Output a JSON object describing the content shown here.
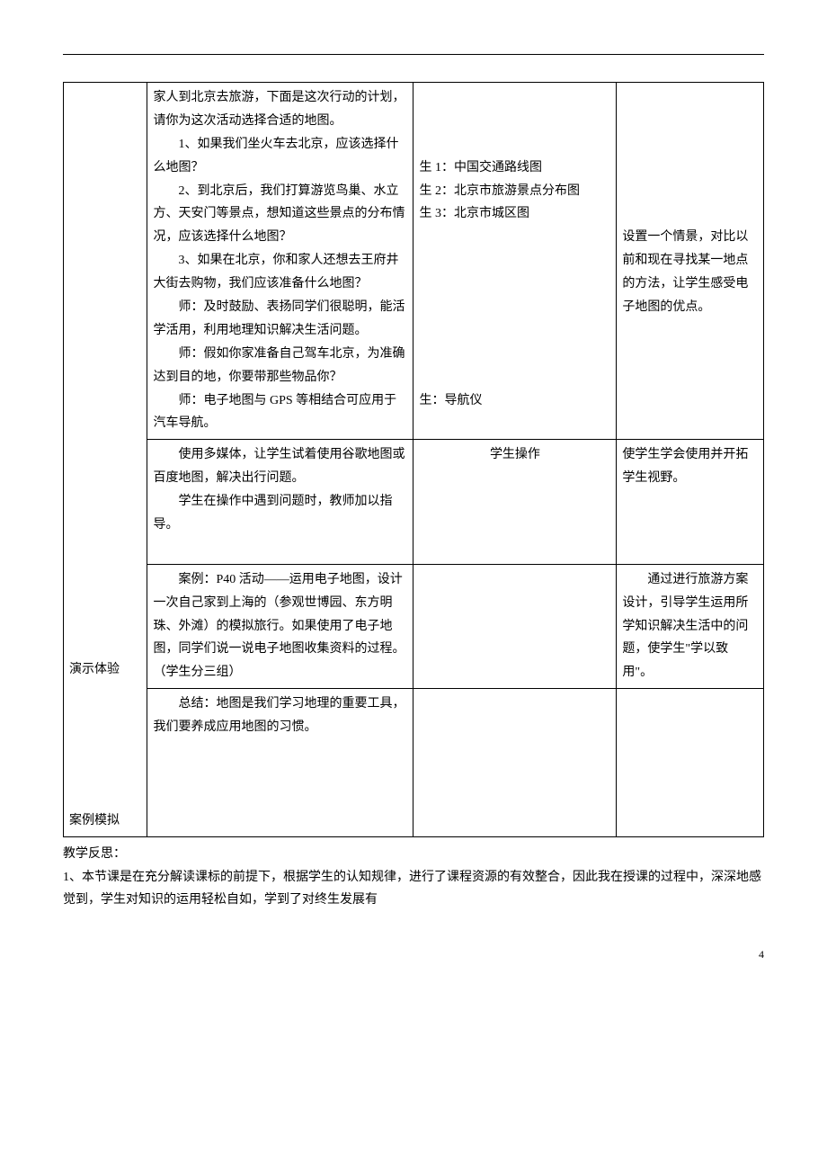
{
  "table": {
    "row1": {
      "col1_label1": "演示体验",
      "col1_label2": "案例模拟",
      "col2_p1": "家人到北京去旅游，下面是这次行动的计划，请你为这次活动选择合适的地图。",
      "col2_p2": "1、如果我们坐火车去北京，应该选择什么地图？",
      "col2_p3": "2、到北京后，我们打算游览鸟巢、水立方、天安门等景点，想知道这些景点的分布情况，应该选择什么地图？",
      "col2_p4": "3、如果在北京，你和家人还想去王府井大街去购物，我们应该准备什么地图？",
      "col2_p5": "师：及时鼓励、表扬同学们很聪明，能活学活用，利用地理知识解决生活问题。",
      "col2_p6": "师：假如你家准备自己驾车北京，为准确达到目的地，你要带那些物品你？",
      "col2_p7": "师：电子地图与 GPS 等相结合可应用于汽车导航。",
      "col3_p1": "生 1：中国交通路线图",
      "col3_p2": "生 2：北京市旅游景点分布图",
      "col3_p3": "生 3：北京市城区图",
      "col3_p4": "生：导航仪",
      "col4_p1": "设置一个情景，对比以前和现在寻找某一地点的方法，让学生感受电子地图的优点。"
    },
    "row2": {
      "col2_p1": "使用多媒体，让学生试着使用谷歌地图或百度地图，解决出行问题。",
      "col2_p2": "学生在操作中遇到问题时，教师加以指导。",
      "col3_p1": "学生操作",
      "col4_p1": "使学生学会使用并开拓学生视野。"
    },
    "row3": {
      "col2_p1": "案例：P40 活动——运用电子地图，设计一次自己家到上海的（参观世博园、东方明珠、外滩）的模拟旅行。如果使用了电子地图，同学们说一说电子地图收集资料的过程。（学生分三组）",
      "col4_p1": "通过进行旅游方案设计，引导学生运用所学知识解决生活中的问题，使学生\"学以致用\"。"
    },
    "row4": {
      "col2_p1": "总结：地图是我们学习地理的重要工具，我们要养成应用地图的习惯。"
    }
  },
  "reflection": {
    "title": "教学反思：",
    "line1": "1、本节课是在充分解读课标的前提下，根据学生的认知规律，进行了课程资源的有效整合，因此我在授课的过程中，深深地感觉到，学生对知识的运用轻松自如，学到了对终生发展有"
  },
  "page_number": "4"
}
